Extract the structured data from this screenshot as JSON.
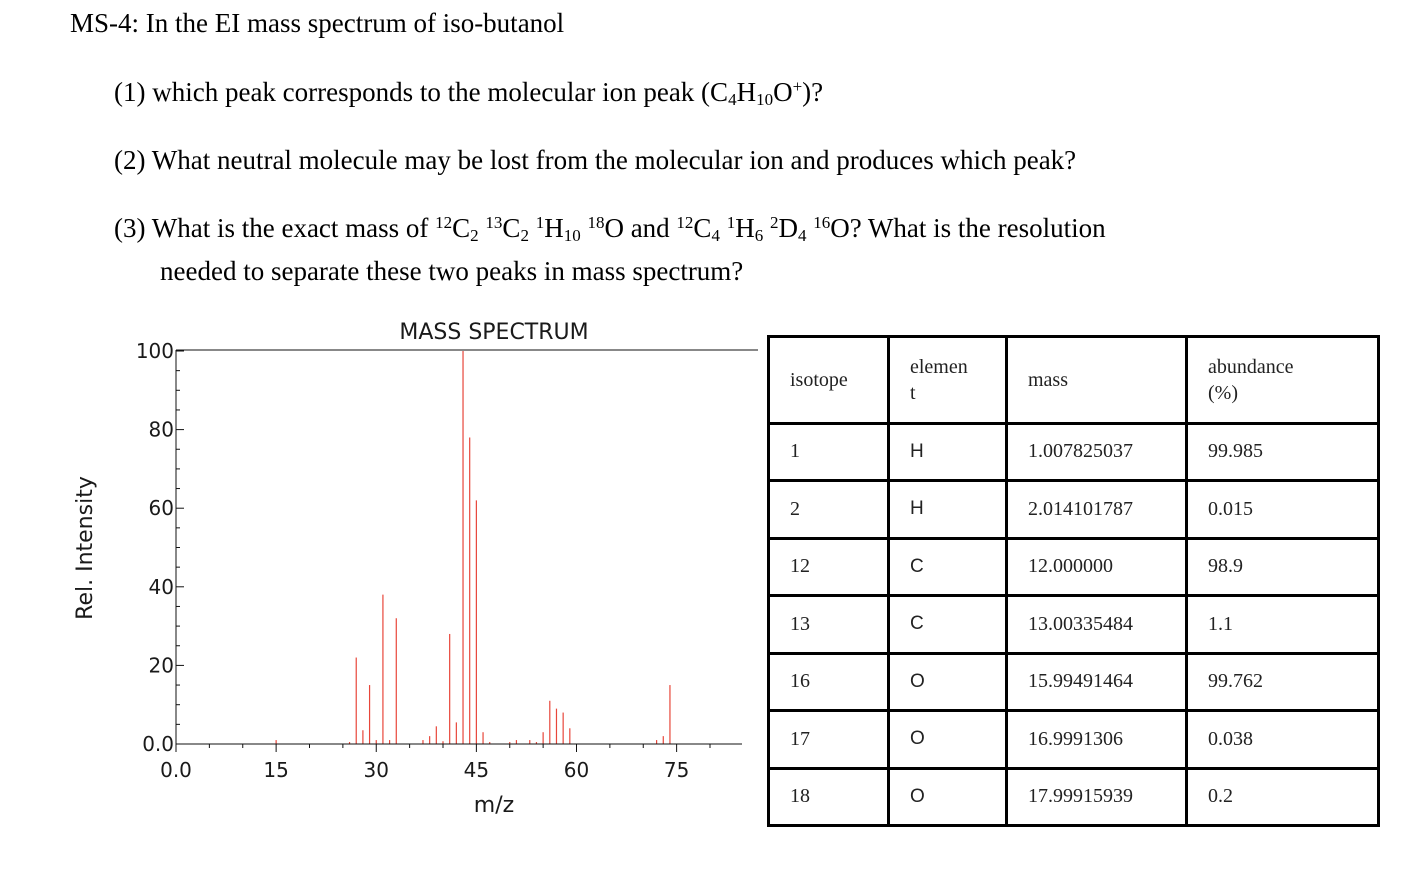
{
  "question": {
    "title": "MS-4: In the EI mass spectrum of iso-butanol",
    "q1": {
      "pre": "(1) which peak corresponds to the molecular ion peak (C",
      "sub1": "4",
      "mid1": "H",
      "sub2": "10",
      "mid2": "O",
      "sup1": "+",
      "post": ")?"
    },
    "q2": "(2) What neutral molecule may be lost from the molecular ion and produces which peak?",
    "q3": {
      "pre": "(3) What is the exact mass of ",
      "a_sup1": "12",
      "a_el1": "C",
      "a_sub1": "2",
      "a_sup2": "13",
      "a_el2": "C",
      "a_sub2": "2",
      "a_sup3": "1",
      "a_el3": "H",
      "a_sub3": "10",
      "a_sup4": "18",
      "a_el4": "O",
      "and": " and ",
      "b_sup1": "12",
      "b_el1": "C",
      "b_sub1": "4",
      "b_sup2": "1",
      "b_el2": "H",
      "b_sub2": "6",
      "b_sup3": "2",
      "b_el3": "D",
      "b_sub3": "4",
      "b_sup4": "16",
      "b_el4": "O",
      "post": "? What is the resolution",
      "line2": "needed to separate these two peaks in mass spectrum?"
    }
  },
  "chart_data": {
    "type": "bar",
    "title": "MASS SPECTRUM",
    "xlabel": "m/z",
    "ylabel": "Rel. Intensity",
    "xlim": [
      0,
      80
    ],
    "ylim": [
      0,
      100
    ],
    "xticks": [
      0,
      15,
      30,
      45,
      60,
      75
    ],
    "xtick_labels": [
      "0.0",
      "15",
      "30",
      "45",
      "60",
      "75"
    ],
    "yticks": [
      0,
      20,
      40,
      60,
      80,
      100
    ],
    "ytick_labels": [
      "0.0",
      "20",
      "40",
      "60",
      "80",
      "100"
    ],
    "bar_color": "#e8463a",
    "peaks": [
      {
        "mz": 15,
        "intensity": 1.0
      },
      {
        "mz": 26,
        "intensity": 0.5
      },
      {
        "mz": 27,
        "intensity": 22
      },
      {
        "mz": 28,
        "intensity": 3.5
      },
      {
        "mz": 29,
        "intensity": 15
      },
      {
        "mz": 30,
        "intensity": 1
      },
      {
        "mz": 31,
        "intensity": 38
      },
      {
        "mz": 32,
        "intensity": 1
      },
      {
        "mz": 33,
        "intensity": 32
      },
      {
        "mz": 37,
        "intensity": 1
      },
      {
        "mz": 38,
        "intensity": 2
      },
      {
        "mz": 39,
        "intensity": 4.5
      },
      {
        "mz": 40,
        "intensity": 0.7
      },
      {
        "mz": 41,
        "intensity": 28
      },
      {
        "mz": 42,
        "intensity": 5.5
      },
      {
        "mz": 43,
        "intensity": 100
      },
      {
        "mz": 44,
        "intensity": 78
      },
      {
        "mz": 45,
        "intensity": 62
      },
      {
        "mz": 46,
        "intensity": 3
      },
      {
        "mz": 47,
        "intensity": 0.5
      },
      {
        "mz": 50,
        "intensity": 0.5
      },
      {
        "mz": 51,
        "intensity": 1
      },
      {
        "mz": 53,
        "intensity": 1
      },
      {
        "mz": 54,
        "intensity": 0.5
      },
      {
        "mz": 55,
        "intensity": 3
      },
      {
        "mz": 56,
        "intensity": 11
      },
      {
        "mz": 57,
        "intensity": 9
      },
      {
        "mz": 58,
        "intensity": 8
      },
      {
        "mz": 59,
        "intensity": 4
      },
      {
        "mz": 72,
        "intensity": 1
      },
      {
        "mz": 73,
        "intensity": 2
      },
      {
        "mz": 74,
        "intensity": 15
      }
    ]
  },
  "isotope_table": {
    "headers": {
      "isotope": "isotope",
      "element_l1": "elemen",
      "element_l2": "t",
      "mass": "mass",
      "abundance_l1": "abundance",
      "abundance_l2": "(%)"
    },
    "rows": [
      {
        "isotope": "1",
        "element": "H",
        "mass": "1.007825037",
        "abundance": "99.985"
      },
      {
        "isotope": "2",
        "element": "H",
        "mass": "2.014101787",
        "abundance": "0.015"
      },
      {
        "isotope": "12",
        "element": "C",
        "mass": "12.000000",
        "abundance": "98.9"
      },
      {
        "isotope": "13",
        "element": "C",
        "mass": "13.00335484",
        "abundance": "1.1"
      },
      {
        "isotope": "16",
        "element": "O",
        "mass": "15.99491464",
        "abundance": "99.762"
      },
      {
        "isotope": "17",
        "element": "O",
        "mass": "16.9991306",
        "abundance": "0.038"
      },
      {
        "isotope": "18",
        "element": "O",
        "mass": "17.99915939",
        "abundance": "0.2"
      }
    ]
  }
}
